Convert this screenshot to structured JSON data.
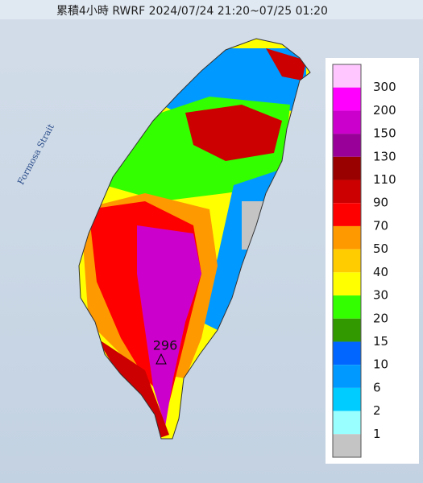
{
  "header": {
    "title": "累積4小時 RWRF 2024/07/24 21:20~07/25 01:20"
  },
  "map": {
    "sea_label": "Formosa Strait",
    "max_label": "296"
  },
  "legend": {
    "labels": [
      "300",
      "200",
      "150",
      "130",
      "110",
      "90",
      "70",
      "50",
      "40",
      "30",
      "20",
      "15",
      "10",
      "6",
      "2",
      "1"
    ],
    "colors": [
      "#ffc6ff",
      "#ff00ff",
      "#cc00cc",
      "#990099",
      "#990000",
      "#cc0000",
      "#ff0000",
      "#ff9900",
      "#ffcc00",
      "#ffff00",
      "#33ff00",
      "#339900",
      "#0066ff",
      "#0099ff",
      "#00ccff",
      "#99ffff",
      "#c4c4c4"
    ]
  }
}
